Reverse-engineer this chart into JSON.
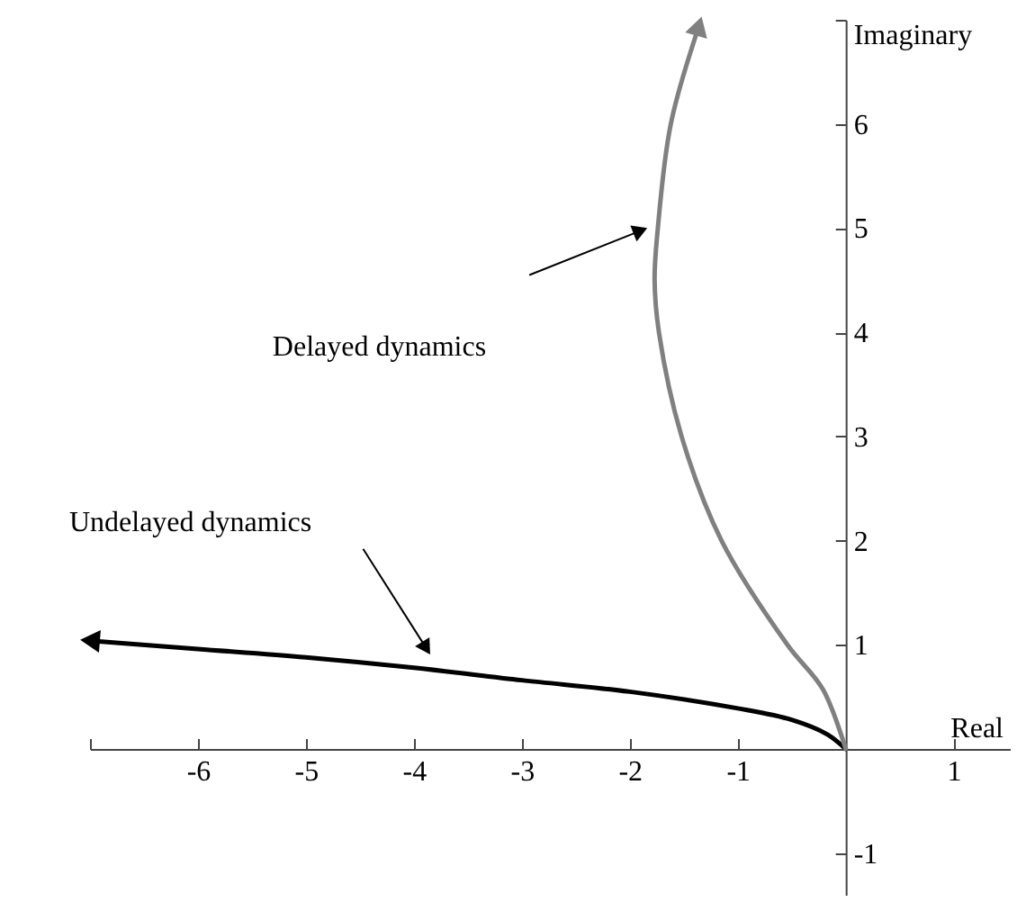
{
  "chart_data": {
    "type": "line",
    "xlabel": "Real",
    "ylabel": "Imaginary",
    "series": [
      {
        "color": "#000000",
        "x": [
          0,
          -0.17,
          -0.5,
          -1,
          -2,
          -3,
          -4,
          -5,
          -6,
          -7
        ],
        "values": [
          0,
          0.14,
          0.28,
          0.39,
          0.55,
          0.66,
          0.78,
          0.88,
          0.96,
          1.04
        ]
      },
      {
        "color": "#808080",
        "x": [
          0,
          -0.21,
          -0.54,
          -1.15,
          -1.52,
          -1.73,
          -1.77,
          -1.74,
          -1.62,
          -1.36
        ],
        "values": [
          0,
          0.57,
          1,
          2,
          3,
          4,
          4.5,
          5,
          6,
          6.94
        ]
      }
    ],
    "annotations": [
      "Delayed dynamics",
      "Undelayed dynamics"
    ],
    "xlim": [
      -7,
      1.52
    ],
    "ylim": [
      -1.4,
      7
    ],
    "xticks": [
      {
        "value": -7,
        "label": null
      },
      -6,
      -5,
      -4,
      -3,
      -2,
      -1,
      1
    ],
    "yticks": [
      -1,
      1,
      2,
      3,
      4,
      5,
      6,
      {
        "value": 7,
        "label": null
      }
    ],
    "grid": false,
    "marker": "none",
    "line_style": "solid"
  }
}
